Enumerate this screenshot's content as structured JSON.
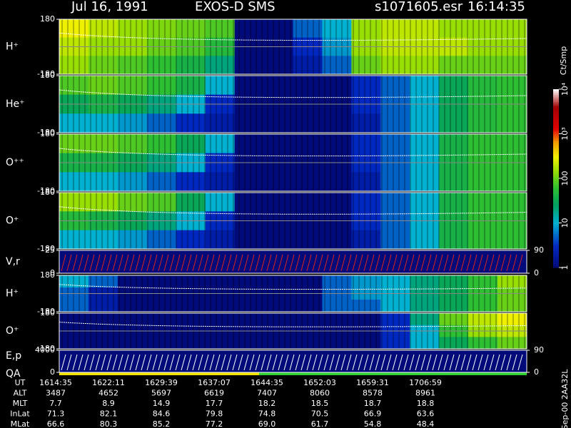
{
  "header": {
    "date": "Jul 16, 1991",
    "instrument": "EXOS-D SMS",
    "file": "s1071605.esr",
    "time": "16:14:35"
  },
  "chart_data": [
    {
      "type": "heatmap",
      "label": "H⁺",
      "ylim": [
        -180,
        180
      ],
      "yticks": [
        -180,
        180
      ],
      "values": [
        [
          300,
          200,
          150,
          120,
          100,
          80,
          1,
          1,
          5,
          10,
          150,
          200,
          200,
          150,
          150,
          150
        ],
        [
          200,
          150,
          150,
          100,
          80,
          50,
          1,
          1,
          3,
          8,
          150,
          200,
          200,
          200,
          150,
          150
        ],
        [
          150,
          100,
          80,
          60,
          40,
          20,
          1,
          1,
          2,
          5,
          100,
          150,
          150,
          100,
          100,
          100
        ]
      ]
    },
    {
      "type": "heatmap",
      "label": "He⁺",
      "ylim": [
        -180,
        180
      ],
      "yticks": [
        -180,
        180
      ],
      "values": [
        [
          80,
          100,
          80,
          60,
          40,
          10,
          1,
          1,
          1,
          1,
          3,
          5,
          10,
          30,
          50,
          60
        ],
        [
          30,
          40,
          30,
          20,
          10,
          3,
          1,
          1,
          1,
          1,
          3,
          5,
          10,
          30,
          50,
          60
        ],
        [
          10,
          10,
          8,
          5,
          3,
          2,
          1,
          1,
          1,
          1,
          2,
          5,
          10,
          30,
          50,
          60
        ]
      ]
    },
    {
      "type": "heatmap",
      "label": "O⁺⁺",
      "ylim": [
        -180,
        180
      ],
      "yticks": [
        -180,
        180
      ],
      "values": [
        [
          100,
          100,
          80,
          60,
          30,
          10,
          1,
          1,
          1,
          1,
          3,
          5,
          10,
          40,
          60,
          60
        ],
        [
          40,
          40,
          30,
          20,
          10,
          3,
          1,
          1,
          1,
          1,
          3,
          5,
          10,
          40,
          60,
          60
        ],
        [
          10,
          10,
          8,
          5,
          3,
          2,
          1,
          1,
          1,
          1,
          2,
          5,
          10,
          40,
          60,
          60
        ]
      ]
    },
    {
      "type": "heatmap",
      "label": "O⁺",
      "ylim": [
        -180,
        180
      ],
      "yticks": [
        -180,
        180
      ],
      "values": [
        [
          150,
          150,
          100,
          80,
          30,
          10,
          1,
          1,
          1,
          1,
          3,
          5,
          10,
          40,
          60,
          60
        ],
        [
          50,
          40,
          30,
          20,
          10,
          3,
          1,
          1,
          1,
          1,
          3,
          5,
          10,
          40,
          60,
          60
        ],
        [
          10,
          10,
          8,
          5,
          3,
          2,
          1,
          1,
          1,
          1,
          2,
          5,
          10,
          40,
          60,
          60
        ]
      ]
    },
    {
      "type": "line",
      "label": "V,r",
      "ylim": [
        0,
        25
      ],
      "yticks": [
        0,
        25
      ],
      "y2lim": [
        0,
        90
      ],
      "y2ticks": [
        0,
        90
      ]
    },
    {
      "type": "heatmap",
      "label": "H⁺",
      "ylim": [
        -180,
        180
      ],
      "yticks": [
        -180,
        180
      ],
      "values": [
        [
          10,
          5,
          1,
          1,
          1,
          1,
          1,
          1,
          1,
          5,
          8,
          10,
          20,
          30,
          60,
          150
        ],
        [
          5,
          2,
          1,
          1,
          1,
          1,
          1,
          1,
          1,
          5,
          8,
          10,
          20,
          30,
          60,
          100
        ],
        [
          5,
          2,
          1,
          1,
          1,
          1,
          1,
          1,
          1,
          5,
          5,
          10,
          20,
          30,
          60,
          100
        ]
      ]
    },
    {
      "type": "heatmap",
      "label": "O⁺",
      "ylim": [
        -180,
        180
      ],
      "yticks": [
        -180,
        180
      ],
      "values": [
        [
          1,
          1,
          1,
          1,
          1,
          1,
          1,
          1,
          1,
          1,
          1,
          3,
          20,
          100,
          200,
          300
        ],
        [
          1,
          1,
          1,
          1,
          1,
          1,
          1,
          1,
          1,
          1,
          1,
          3,
          10,
          60,
          150,
          200
        ],
        [
          1,
          1,
          1,
          1,
          1,
          1,
          1,
          1,
          1,
          1,
          1,
          3,
          10,
          30,
          60,
          100
        ]
      ]
    },
    {
      "type": "line",
      "label": "E,p",
      "sublabel": "QA",
      "ylim": [
        0,
        4000
      ],
      "yticks": [
        0,
        4000
      ],
      "y2lim": [
        0,
        90
      ],
      "y2ticks": [
        0,
        90
      ]
    }
  ],
  "colorbar": {
    "label": "Ct/Smp",
    "lim": [
      1,
      10000
    ],
    "log": true,
    "ticks": [
      1,
      10,
      100,
      {
        "value": 1000,
        "label": "10³"
      },
      {
        "value": 10000,
        "label": "10⁴"
      }
    ]
  },
  "ephemeris": {
    "rows": [
      [
        "UT",
        "1614:35",
        "1622:11",
        "1629:39",
        "1637:07",
        "1644:35",
        "1652:03",
        "1659:31",
        "1706:59"
      ],
      [
        "ALT",
        "3487",
        "4652",
        "5697",
        "6619",
        "7407",
        "8060",
        "8578",
        "8961"
      ],
      [
        "MLT",
        "7.7",
        "8.9",
        "14.9",
        "17.7",
        "18.2",
        "18.5",
        "18.7",
        "18.8"
      ],
      [
        "InLat",
        "71.3",
        "82.1",
        "84.6",
        "79.8",
        "74.8",
        "70.5",
        "66.9",
        "63.6"
      ],
      [
        "MLat",
        "66.6",
        "80.3",
        "85.2",
        "77.2",
        "69.0",
        "61.7",
        "54.8",
        "48.4"
      ]
    ]
  },
  "footnote": "Sep-00  2AA32L"
}
